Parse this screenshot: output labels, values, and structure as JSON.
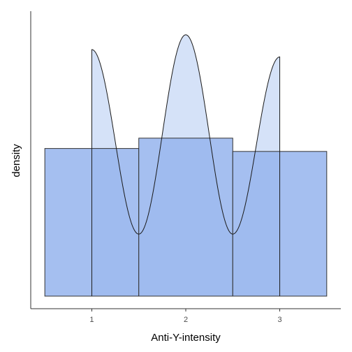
{
  "chart_data": {
    "type": "histogram+density",
    "xlabel": "Anti-Y-intensity",
    "ylabel": "density",
    "xlim": [
      0.35,
      3.65
    ],
    "ylim": [
      0,
      1.93
    ],
    "x_ticks": [
      1,
      2,
      3
    ],
    "y_ticks": [],
    "histogram": {
      "bins": [
        {
          "x0": 0.5,
          "x1": 1.5,
          "density": 1.0
        },
        {
          "x0": 1.5,
          "x1": 2.5,
          "density": 1.07
        },
        {
          "x0": 2.5,
          "x1": 3.5,
          "density": 0.98
        }
      ],
      "fill": "#95b4ed",
      "stroke": "#333333"
    },
    "density_curve": {
      "x_range": [
        1,
        3
      ],
      "points": [
        {
          "x": 1.0,
          "y": 1.67
        },
        {
          "x": 1.5,
          "y": 0.42
        },
        {
          "x": 2.0,
          "y": 1.77
        },
        {
          "x": 2.5,
          "y": 0.42
        },
        {
          "x": 3.0,
          "y": 1.62
        }
      ],
      "fill": "#d5e2f8",
      "stroke": "#1a1a1a"
    },
    "grid": false,
    "legend": "none"
  },
  "colors": {
    "axis": "#333333",
    "tick_text": "#4d4d4d",
    "background": "#ffffff"
  }
}
